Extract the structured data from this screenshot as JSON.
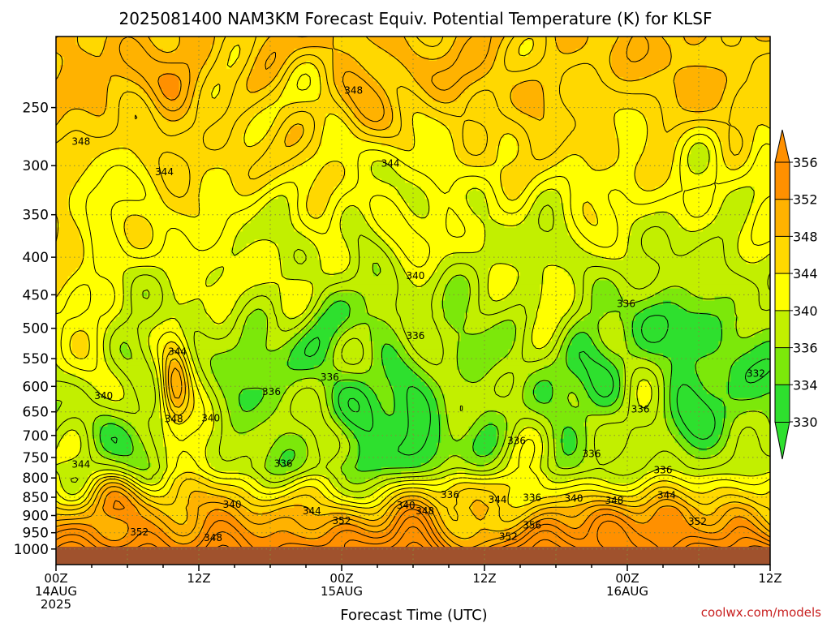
{
  "chart_data": {
    "type": "heatmap",
    "title": "2025081400 NAM3KM Forecast Equiv. Potential Temperature (K) for KLSF",
    "xlabel": "Forecast Time (UTC)",
    "ylabel": "",
    "x_range_hours": [
      0,
      60
    ],
    "x_ticks": [
      {
        "hour": 0,
        "lines": [
          "00Z",
          "14AUG",
          "2025"
        ]
      },
      {
        "hour": 12,
        "lines": [
          "12Z"
        ]
      },
      {
        "hour": 24,
        "lines": [
          "00Z",
          "15AUG"
        ]
      },
      {
        "hour": 36,
        "lines": [
          "12Z"
        ]
      },
      {
        "hour": 48,
        "lines": [
          "00Z",
          "16AUG"
        ]
      },
      {
        "hour": 60,
        "lines": [
          "12Z"
        ]
      }
    ],
    "y_scale": "log",
    "y_range_hpa": [
      1050,
      200
    ],
    "y_ticks": [
      250,
      300,
      350,
      400,
      450,
      500,
      550,
      600,
      650,
      700,
      750,
      800,
      850,
      900,
      950,
      1000
    ],
    "grid": true,
    "ground_level_hpa": 993,
    "colorbar": {
      "levels": [
        330,
        334,
        336,
        340,
        344,
        348,
        352,
        356
      ],
      "colors": [
        "#2ee02e",
        "#7ce80a",
        "#c2ef00",
        "#ffff00",
        "#ffd800",
        "#ffb200",
        "#ff9000"
      ],
      "under_color": "#2ee02e",
      "over_color": "#ff9000"
    },
    "ground_color": "#a0522d",
    "contour_labels": [
      {
        "text": "348",
        "hour": 2.1,
        "hpa": 278
      },
      {
        "text": "348",
        "hour": 25.0,
        "hpa": 237
      },
      {
        "text": "344",
        "hour": 9.1,
        "hpa": 306
      },
      {
        "text": "344",
        "hour": 28.1,
        "hpa": 298
      },
      {
        "text": "340",
        "hour": 30.2,
        "hpa": 424
      },
      {
        "text": "336",
        "hour": 47.9,
        "hpa": 463
      },
      {
        "text": "336",
        "hour": 30.2,
        "hpa": 512
      },
      {
        "text": "344",
        "hour": 10.2,
        "hpa": 538
      },
      {
        "text": "336",
        "hour": 23.0,
        "hpa": 583
      },
      {
        "text": "336",
        "hour": 18.1,
        "hpa": 610
      },
      {
        "text": "332",
        "hour": 58.8,
        "hpa": 576
      },
      {
        "text": "340",
        "hour": 4.0,
        "hpa": 618
      },
      {
        "text": "336",
        "hour": 49.1,
        "hpa": 645
      },
      {
        "text": "348",
        "hour": 9.9,
        "hpa": 665
      },
      {
        "text": "340",
        "hour": 13.0,
        "hpa": 663
      },
      {
        "text": "336",
        "hour": 38.7,
        "hpa": 712
      },
      {
        "text": "336",
        "hour": 45.0,
        "hpa": 742
      },
      {
        "text": "344",
        "hour": 2.1,
        "hpa": 767
      },
      {
        "text": "336",
        "hour": 19.1,
        "hpa": 765
      },
      {
        "text": "336",
        "hour": 51.0,
        "hpa": 780
      },
      {
        "text": "336",
        "hour": 33.1,
        "hpa": 843
      },
      {
        "text": "344",
        "hour": 37.1,
        "hpa": 856
      },
      {
        "text": "336",
        "hour": 40.0,
        "hpa": 851
      },
      {
        "text": "340",
        "hour": 43.5,
        "hpa": 853
      },
      {
        "text": "348",
        "hour": 46.9,
        "hpa": 859
      },
      {
        "text": "344",
        "hour": 51.3,
        "hpa": 845
      },
      {
        "text": "340",
        "hour": 14.8,
        "hpa": 870
      },
      {
        "text": "340",
        "hour": 29.4,
        "hpa": 872
      },
      {
        "text": "348",
        "hour": 31.0,
        "hpa": 888
      },
      {
        "text": "344",
        "hour": 21.5,
        "hpa": 888
      },
      {
        "text": "352",
        "hour": 24.0,
        "hpa": 915
      },
      {
        "text": "352",
        "hour": 7.0,
        "hpa": 948
      },
      {
        "text": "352",
        "hour": 53.9,
        "hpa": 917
      },
      {
        "text": "356",
        "hour": 40.0,
        "hpa": 928
      },
      {
        "text": "352",
        "hour": 38.0,
        "hpa": 962
      },
      {
        "text": "348",
        "hour": 13.2,
        "hpa": 965
      }
    ]
  },
  "credit": "coolwx.com/models"
}
